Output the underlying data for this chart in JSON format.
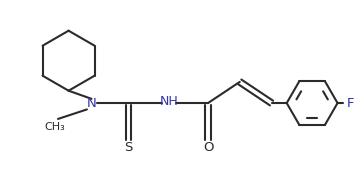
{
  "bg_color": "#ffffff",
  "line_color": "#2b2b2b",
  "N_color": "#3333aa",
  "O_color": "#2b2b2b",
  "S_color": "#2b2b2b",
  "F_color": "#3333aa",
  "line_width": 1.5,
  "figsize": [
    3.56,
    1.92
  ],
  "dpi": 100,
  "xlim": [
    0,
    10
  ],
  "ylim": [
    0,
    5.4
  ]
}
